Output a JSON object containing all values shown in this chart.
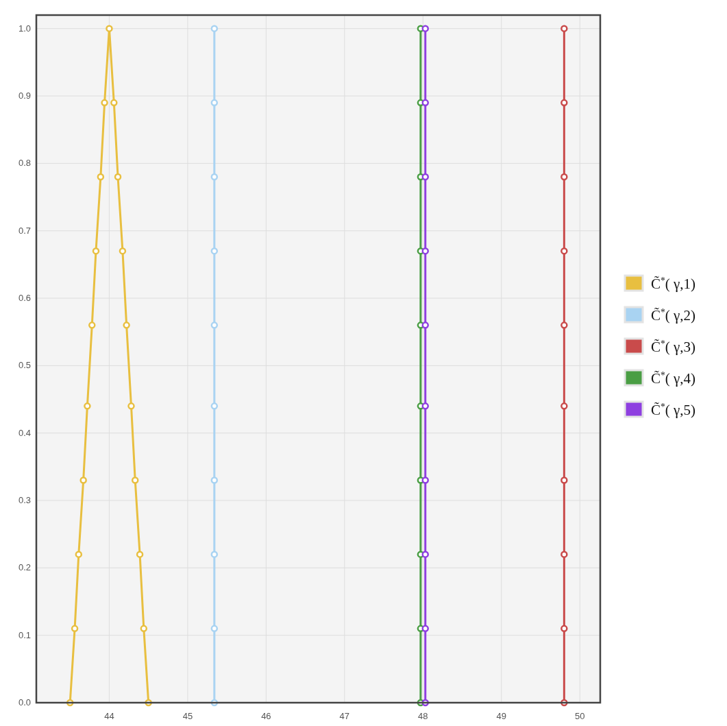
{
  "chart_data": {
    "type": "line",
    "xlim": [
      43.07,
      50.26
    ],
    "ylim": [
      0,
      1.02
    ],
    "xticks": [
      44,
      45,
      46,
      47,
      48,
      49,
      50
    ],
    "yticks": [
      {
        "value": 0,
        "label": "0.0"
      },
      {
        "value": 0.1,
        "label": "0.1"
      },
      {
        "value": 0.2,
        "label": "0.2"
      },
      {
        "value": 0.3,
        "label": "0.3"
      },
      {
        "value": 0.4,
        "label": "0.4"
      },
      {
        "value": 0.5,
        "label": "0.5"
      },
      {
        "value": 0.6,
        "label": "0.6"
      },
      {
        "value": 0.7,
        "label": "0.7"
      },
      {
        "value": 0.8,
        "label": "0.8"
      },
      {
        "value": 0.9,
        "label": "0.9"
      },
      {
        "value": 1,
        "label": "1.0"
      }
    ],
    "grid": true,
    "legend": "right",
    "marker": "circle",
    "line_style": "solid",
    "series": [
      {
        "name": "C̃$^{*}$( γ,1)",
        "color": "#e8bf40",
        "x": [
          43.5,
          43.56,
          43.61,
          43.67,
          43.72,
          43.78,
          43.83,
          43.89,
          43.94,
          44.0,
          44.06,
          44.11,
          44.17,
          44.22,
          44.28,
          44.33,
          44.39,
          44.44,
          44.5
        ],
        "values": [
          0,
          0.11,
          0.22,
          0.33,
          0.44,
          0.56,
          0.67,
          0.78,
          0.89,
          1,
          0.89,
          0.78,
          0.67,
          0.56,
          0.44,
          0.33,
          0.22,
          0.11,
          0
        ]
      },
      {
        "name": "C̃$^{*}$( γ,2)",
        "color": "#a9d3f2",
        "x": [
          45.34,
          45.34,
          45.34,
          45.34,
          45.34,
          45.34,
          45.34,
          45.34,
          45.34,
          45.34
        ],
        "values": [
          0,
          0.11,
          0.22,
          0.33,
          0.44,
          0.56,
          0.67,
          0.78,
          0.89,
          1
        ]
      },
      {
        "name": "C̃$^{*}$( γ,3)",
        "color": "#c94b4b",
        "x": [
          49.8,
          49.8,
          49.8,
          49.8,
          49.8,
          49.8,
          49.8,
          49.8,
          49.8,
          49.8
        ],
        "values": [
          0,
          0.11,
          0.22,
          0.33,
          0.44,
          0.56,
          0.67,
          0.78,
          0.89,
          1
        ]
      },
      {
        "name": "C̃$^{*}$( γ,4)",
        "color": "#4a9e44",
        "x": [
          47.97,
          47.97,
          47.97,
          47.97,
          47.97,
          47.97,
          47.97,
          47.97,
          47.97,
          47.97
        ],
        "values": [
          0,
          0.11,
          0.22,
          0.33,
          0.44,
          0.56,
          0.67,
          0.78,
          0.89,
          1
        ]
      },
      {
        "name": "C̃$^{*}$( γ,5)",
        "color": "#8e3fe0",
        "x": [
          48.03,
          48.03,
          48.03,
          48.03,
          48.03,
          48.03,
          48.03,
          48.03,
          48.03,
          48.03
        ],
        "values": [
          0,
          0.11,
          0.22,
          0.33,
          0.44,
          0.56,
          0.67,
          0.78,
          0.89,
          1
        ]
      }
    ]
  }
}
